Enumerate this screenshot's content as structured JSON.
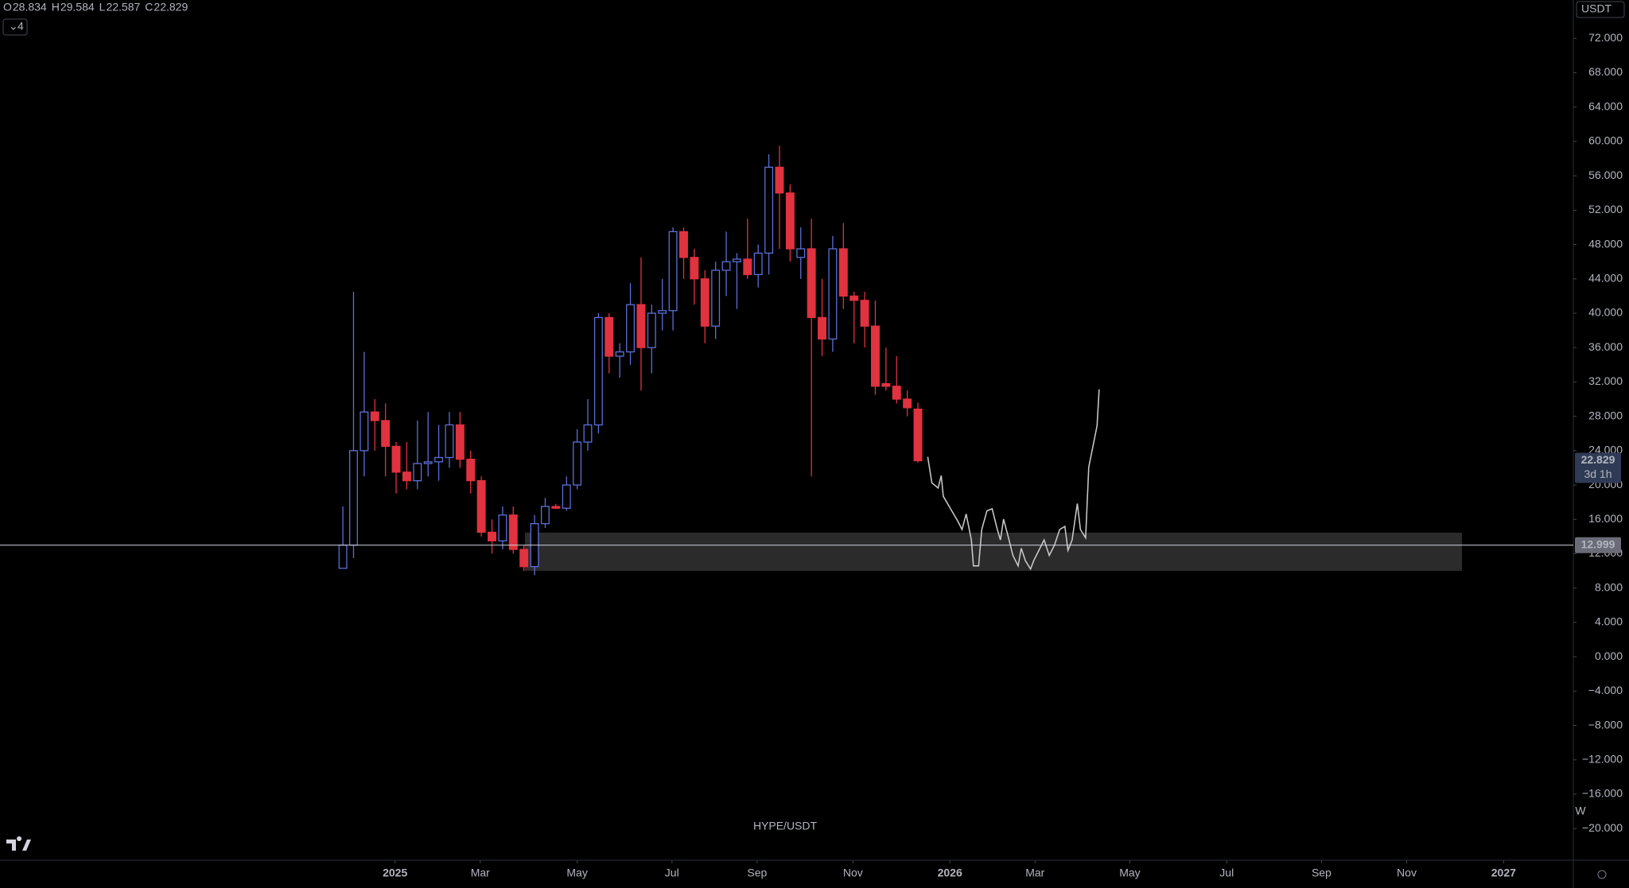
{
  "chart_data": {
    "type": "candlestick",
    "symbol": "HYPE/USDT",
    "interval": "W",
    "currency": "USDT",
    "indicator_count": "4",
    "ohlc_header": [
      {
        "key": "O",
        "value": "28.834"
      },
      {
        "key": "H",
        "value": "29.584"
      },
      {
        "key": "L",
        "value": "22.587"
      },
      {
        "key": "C",
        "value": "22.829"
      }
    ],
    "up_color": "#5b6fd6",
    "down_color": "#e0323f",
    "x": [
      0,
      1,
      2,
      3,
      4,
      5,
      6,
      7,
      8,
      9,
      10,
      11,
      12,
      13,
      14,
      15,
      16,
      17,
      18,
      19,
      20,
      21,
      22,
      23,
      24,
      25,
      26,
      27,
      28,
      29,
      30,
      31,
      32,
      33,
      34,
      35,
      36,
      37,
      38,
      39,
      40,
      41,
      42,
      43,
      44,
      45,
      46,
      47,
      48,
      49,
      50,
      51,
      52,
      53,
      54
    ],
    "open": [
      10.3,
      13,
      24,
      28.5,
      27.5,
      24.5,
      21.5,
      20.5,
      22.5,
      22.7,
      23.2,
      27,
      23,
      20.5,
      14.5,
      13.5,
      16.5,
      12.5,
      10.5,
      15.5,
      17.5,
      17.3,
      20,
      25,
      27,
      39.5,
      35,
      35.5,
      41,
      36,
      40,
      40.3,
      49.5,
      46.5,
      44,
      38.5,
      45,
      46,
      46.3,
      44.5,
      47,
      57,
      54,
      46.5,
      47.5,
      39.5,
      37,
      47.5,
      42,
      41.5,
      38.5,
      31.8,
      31.5,
      30,
      28.834
    ],
    "high": [
      17.5,
      42.5,
      35.5,
      30,
      29.5,
      25,
      25,
      27.5,
      28.5,
      27,
      28.5,
      28.5,
      24,
      21,
      16,
      17.5,
      17.5,
      13,
      16.5,
      18.5,
      17.8,
      21,
      26.5,
      30,
      40,
      40,
      36.5,
      43.5,
      46.5,
      41,
      44,
      50,
      50,
      47.5,
      45,
      46,
      49.5,
      47,
      51,
      48,
      58.5,
      59.5,
      55,
      50,
      51,
      44,
      49,
      50.5,
      42.5,
      42.5,
      41.5,
      36,
      35,
      31,
      29.584
    ],
    "low": [
      10.3,
      11.5,
      21,
      24,
      21,
      19,
      19.5,
      19.5,
      21,
      20.5,
      22,
      22,
      19,
      14,
      12,
      12.5,
      12,
      10,
      9.5,
      15,
      17.2,
      17,
      19.5,
      24,
      26,
      33,
      32.5,
      34,
      31,
      33,
      38,
      38,
      44,
      41,
      36.5,
      37,
      42,
      40.5,
      44,
      43,
      44.5,
      47.5,
      46,
      44,
      21,
      35,
      35.5,
      40.5,
      36.5,
      36,
      30.5,
      31,
      29.5,
      28,
      22.587
    ],
    "close": [
      13,
      24,
      28.5,
      27.5,
      24.5,
      21.5,
      20.5,
      22.5,
      22.7,
      23.2,
      27,
      23,
      20.5,
      14.5,
      13.5,
      16.5,
      12.5,
      10.5,
      15.5,
      17.5,
      17.3,
      20,
      25,
      27,
      39.5,
      35,
      35.5,
      41,
      36,
      40,
      40.3,
      49.5,
      46.5,
      44,
      38.5,
      45,
      46,
      46.3,
      44.5,
      47,
      57,
      54,
      47.5,
      47.5,
      39.5,
      37,
      47.5,
      42,
      41.5,
      38.5,
      31.5,
      31.5,
      30,
      29,
      22.829
    ],
    "xlim": [
      -32.2,
      115.1
    ],
    "xticks": [
      {
        "value": 4.9,
        "label": "2025"
      },
      {
        "value": 12.9,
        "label": "Mar"
      },
      {
        "value": 22.0,
        "label": "May"
      },
      {
        "value": 30.9,
        "label": "Jul"
      },
      {
        "value": 38.9,
        "label": "Sep"
      },
      {
        "value": 47.9,
        "label": "Nov"
      },
      {
        "value": 57.0,
        "label": "2026"
      },
      {
        "value": 65.0,
        "label": "Mar"
      },
      {
        "value": 73.9,
        "label": "May"
      },
      {
        "value": 83.0,
        "label": "Jul"
      },
      {
        "value": 91.9,
        "label": "Sep"
      },
      {
        "value": 99.9,
        "label": "Nov"
      },
      {
        "value": 109.0,
        "label": "2027"
      }
    ],
    "ylim": [
      -20,
      72
    ],
    "yticks": [
      {
        "value": 72,
        "label": "72.000"
      },
      {
        "value": 68,
        "label": "68.000"
      },
      {
        "value": 64,
        "label": "64.000"
      },
      {
        "value": 60,
        "label": "60.000"
      },
      {
        "value": 56,
        "label": "56.000"
      },
      {
        "value": 52,
        "label": "52.000"
      },
      {
        "value": 48,
        "label": "48.000"
      },
      {
        "value": 44,
        "label": "44.000"
      },
      {
        "value": 40,
        "label": "40.000"
      },
      {
        "value": 36,
        "label": "36.000"
      },
      {
        "value": 32,
        "label": "32.000"
      },
      {
        "value": 28,
        "label": "28.000"
      },
      {
        "value": 24,
        "label": "24.000"
      },
      {
        "value": 20,
        "label": "20.000"
      },
      {
        "value": 16,
        "label": "16.000"
      },
      {
        "value": 12,
        "label": "12.000"
      },
      {
        "value": 8,
        "label": "8.000"
      },
      {
        "value": 4,
        "label": "4.000"
      },
      {
        "value": 0,
        "label": "0.000"
      },
      {
        "value": -4,
        "label": "−4.000"
      },
      {
        "value": -8,
        "label": "−8.000"
      },
      {
        "value": -12,
        "label": "−12.000"
      },
      {
        "value": -16,
        "label": "−16.000"
      },
      {
        "value": -20,
        "label": "−20.000"
      }
    ],
    "price_line": {
      "value": 12.999,
      "label": "12.999"
    },
    "last_price": {
      "value": 22.829,
      "label": "22.829",
      "countdown": "3d 1h"
    }
  }
}
